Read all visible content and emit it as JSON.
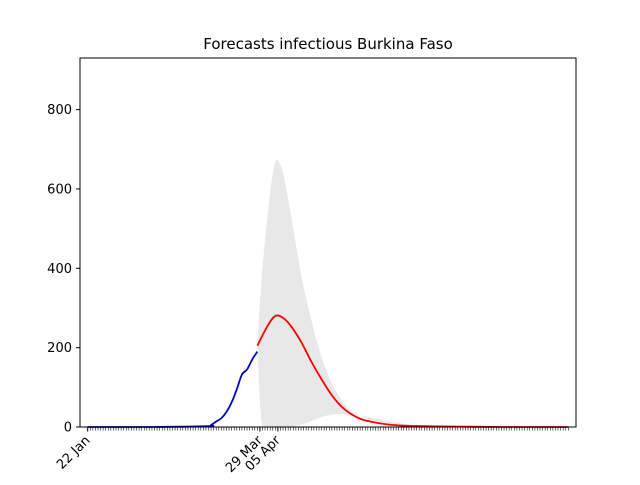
{
  "chart_data": {
    "type": "line",
    "title": "Forecasts infectious Burkina Faso",
    "xlabel": "",
    "ylabel": "",
    "x_range": [
      "2020-01-22",
      "2020-07-27"
    ],
    "ylim": [
      0,
      930
    ],
    "y_ticks": [
      0,
      200,
      400,
      600,
      800
    ],
    "x_tick_labels": [
      {
        "label": "22 Jan",
        "date": "2020-01-22"
      },
      {
        "label": "29 Mar",
        "date": "2020-03-29"
      },
      {
        "label": "05 Apr",
        "date": "2020-04-05"
      }
    ],
    "grid": false,
    "legend": "none",
    "colors": {
      "observed": "#0000cc",
      "forecast": "#ff0000",
      "band": "#e8e8e8",
      "axis": "#000000"
    },
    "series": [
      {
        "role": "observed",
        "x": [
          "2020-01-22",
          "2020-02-15",
          "2020-03-09",
          "2020-03-10",
          "2020-03-12",
          "2020-03-14",
          "2020-03-16",
          "2020-03-18",
          "2020-03-20",
          "2020-03-22",
          "2020-03-24",
          "2020-03-26",
          "2020-03-28"
        ],
        "y": [
          0,
          0,
          2,
          5,
          14,
          22,
          38,
          62,
          95,
          132,
          145,
          170,
          190
        ]
      },
      {
        "role": "forecast",
        "x": [
          "2020-03-28",
          "2020-04-01",
          "2020-04-04",
          "2020-04-07",
          "2020-04-10",
          "2020-04-14",
          "2020-04-18",
          "2020-04-22",
          "2020-04-26",
          "2020-04-30",
          "2020-05-05",
          "2020-05-10",
          "2020-05-20",
          "2020-06-01",
          "2020-06-15",
          "2020-07-01",
          "2020-07-27"
        ],
        "y": [
          205,
          255,
          280,
          275,
          255,
          215,
          165,
          120,
          80,
          50,
          27,
          15,
          5,
          2,
          1,
          0,
          0
        ]
      },
      {
        "role": "band-upper",
        "x": [
          "2020-03-28",
          "2020-03-30",
          "2020-04-02",
          "2020-04-04",
          "2020-04-06",
          "2020-04-08",
          "2020-04-11",
          "2020-04-14",
          "2020-04-18",
          "2020-04-22",
          "2020-04-26",
          "2020-04-30",
          "2020-05-04",
          "2020-05-08",
          "2020-05-14",
          "2020-05-24",
          "2020-06-05",
          "2020-06-20",
          "2020-07-10",
          "2020-07-27"
        ],
        "y": [
          210,
          400,
          590,
          668,
          660,
          610,
          500,
          385,
          270,
          175,
          110,
          65,
          38,
          25,
          14,
          5,
          2,
          1,
          0,
          0
        ]
      },
      {
        "role": "band-lower",
        "x": [
          "2020-03-28",
          "2020-03-30",
          "2020-04-04",
          "2020-04-10",
          "2020-04-16",
          "2020-04-22",
          "2020-04-27",
          "2020-05-02",
          "2020-05-08",
          "2020-05-14",
          "2020-05-20",
          "2020-05-28",
          "2020-06-10",
          "2020-07-27"
        ],
        "y": [
          210,
          0,
          0,
          0,
          10,
          25,
          32,
          32,
          28,
          20,
          12,
          5,
          1,
          0
        ]
      }
    ]
  }
}
